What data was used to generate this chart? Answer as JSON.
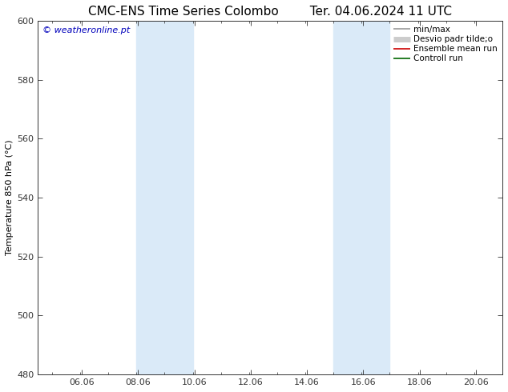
{
  "title_left": "CMC-ENS Time Series Colombo",
  "title_right": "Ter. 04.06.2024 11 UTC",
  "ylabel": "Temperature 850 hPa (°C)",
  "ylim": [
    480,
    600
  ],
  "yticks": [
    480,
    500,
    520,
    540,
    560,
    580,
    600
  ],
  "xlim": [
    4.5,
    21.0
  ],
  "xticks": [
    6.06,
    8.06,
    10.06,
    12.06,
    14.06,
    16.06,
    18.06,
    20.06
  ],
  "xticklabels": [
    "06.06",
    "08.06",
    "10.06",
    "12.06",
    "14.06",
    "16.06",
    "18.06",
    "20.06"
  ],
  "watermark_text": "© weatheronline.pt",
  "watermark_color": "#0000bb",
  "bg_color": "#ffffff",
  "plot_bg_color": "#ffffff",
  "shaded_bands": [
    {
      "xmin": 8.0,
      "xmax": 10.0,
      "color": "#daeaf8"
    },
    {
      "xmin": 15.0,
      "xmax": 17.0,
      "color": "#daeaf8"
    }
  ],
  "legend_items": [
    {
      "label": "min/max",
      "color": "#999999",
      "lw": 1.2
    },
    {
      "label": "Desvio padr tilde;o",
      "color": "#cccccc",
      "lw": 5
    },
    {
      "label": "Ensemble mean run",
      "color": "#cc0000",
      "lw": 1.2
    },
    {
      "label": "Controll run",
      "color": "#006600",
      "lw": 1.2
    }
  ],
  "font_size_title": 11,
  "font_size_axis_label": 8,
  "font_size_tick": 8,
  "font_size_legend": 7.5,
  "font_size_watermark": 8,
  "spine_color": "#333333",
  "tick_color": "#333333"
}
